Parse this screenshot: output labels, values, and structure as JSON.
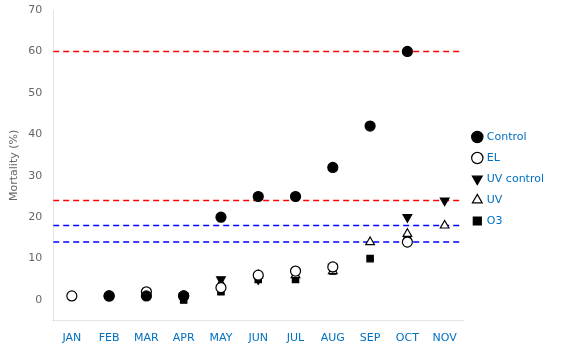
{
  "chart_data": {
    "type": "scatter",
    "ylabel": "Mortality (%)",
    "categories": [
      "JAN",
      "FEB",
      "MAR",
      "APR",
      "MAY",
      "JUN",
      "JUL",
      "AUG",
      "SEP",
      "OCT",
      "NOV"
    ],
    "series": [
      {
        "name": "Control",
        "color": "#000000",
        "marker": "circle",
        "values": [
          null,
          1,
          1,
          1,
          20,
          25,
          25,
          32,
          42,
          60,
          null
        ]
      },
      {
        "name": "EL",
        "color": "#000000",
        "marker": "open_circle",
        "values": [
          1,
          1,
          2,
          1,
          3,
          6,
          7,
          8,
          null,
          14,
          null
        ]
      },
      {
        "name": "UV control",
        "color": "#000000",
        "marker": "triangle_down",
        "values": [
          null,
          null,
          null,
          1,
          5,
          5,
          null,
          8,
          null,
          20,
          24
        ]
      },
      {
        "name": "UV",
        "color": "#000000",
        "marker": "open_triangle_up",
        "values": [
          null,
          null,
          null,
          null,
          4,
          6,
          6,
          7,
          14,
          16,
          18
        ]
      },
      {
        "name": "O3",
        "color": "#000000",
        "marker": "square",
        "values": [
          null,
          null,
          null,
          0,
          2,
          5,
          5,
          7,
          10,
          15,
          null
        ]
      }
    ],
    "hlines": [
      {
        "y": 60,
        "color": "#FF0000",
        "line_style": "dashed"
      },
      {
        "y": 24,
        "color": "#FF0000",
        "line_style": "dashed"
      },
      {
        "y": 18,
        "color": "#0000FF",
        "line_style": "dashed"
      },
      {
        "y": 14,
        "color": "#0000FF",
        "line_style": "dashed"
      }
    ],
    "ylim": [
      -5,
      70
    ],
    "yticks": [
      0,
      10,
      20,
      30,
      40,
      50,
      60,
      70
    ],
    "grid": false,
    "legend": "right"
  }
}
